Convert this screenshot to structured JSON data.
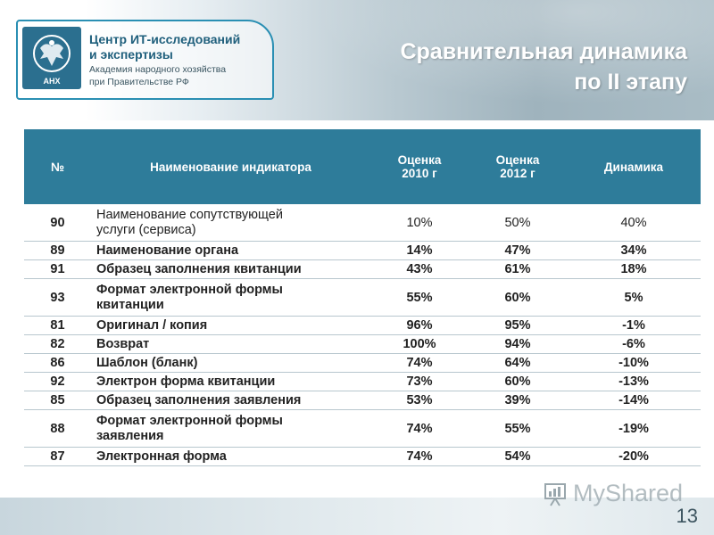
{
  "org": {
    "name_line1": "Центр ИТ-исследований",
    "name_line2": "и экспертизы",
    "sub_line1": "Академия народного хозяйства",
    "sub_line2": "при Правительстве РФ",
    "emblem_text": "АНХ"
  },
  "title": {
    "line1": "Сравнительная динамика",
    "line2": "по II этапу"
  },
  "table": {
    "headers": {
      "num": "№",
      "name": "Наименование индикатора",
      "score2010_line1": "Оценка",
      "score2010_line2": "2010 г",
      "score2012_line1": "Оценка",
      "score2012_line2": "2012 г",
      "dynamics": "Динамика"
    },
    "rows": [
      {
        "num": "90",
        "name_l1": "Наименование сопутствующей",
        "name_l2": "услуги (сервиса)",
        "v2010": "10%",
        "v2012": "50%",
        "dyn": "40%"
      },
      {
        "num": "89",
        "name": "Наименование органа",
        "v2010": "14%",
        "v2012": "47%",
        "dyn": "34%"
      },
      {
        "num": "91",
        "name": "Образец заполнения квитанции",
        "v2010": "43%",
        "v2012": "61%",
        "dyn": "18%"
      },
      {
        "num": "93",
        "name_l1": "Формат электронной формы",
        "name_l2": "квитанции",
        "v2010": "55%",
        "v2012": "60%",
        "dyn": "5%"
      },
      {
        "num": "81",
        "name": "Оригинал / копия",
        "v2010": "96%",
        "v2012": "95%",
        "dyn": "-1%"
      },
      {
        "num": "82",
        "name": "Возврат",
        "v2010": "100%",
        "v2012": "94%",
        "dyn": "-6%"
      },
      {
        "num": "86",
        "name": "Шаблон (бланк)",
        "v2010": "74%",
        "v2012": "64%",
        "dyn": "-10%"
      },
      {
        "num": "92",
        "name": "Электрон форма квитанции",
        "v2010": "73%",
        "v2012": "60%",
        "dyn": "-13%"
      },
      {
        "num": "85",
        "name": "Образец заполнения заявления",
        "v2010": "53%",
        "v2012": "39%",
        "dyn": "-14%"
      },
      {
        "num": "88",
        "name_l1": "Формат электронной формы",
        "name_l2": "заявления",
        "v2010": "74%",
        "v2012": "55%",
        "dyn": "-19%"
      },
      {
        "num": "87",
        "name": "Электронная форма",
        "v2010": "74%",
        "v2012": "54%",
        "dyn": "-20%"
      }
    ]
  },
  "watermark": "MyShared",
  "page_number": "13",
  "colors": {
    "header_accent": "#2e7c9a",
    "logo_border": "#2a8fb3",
    "title_text": "#ffffff"
  },
  "icons": {
    "emblem": "eagle-emblem-icon",
    "watermark": "presentation-board-icon"
  }
}
